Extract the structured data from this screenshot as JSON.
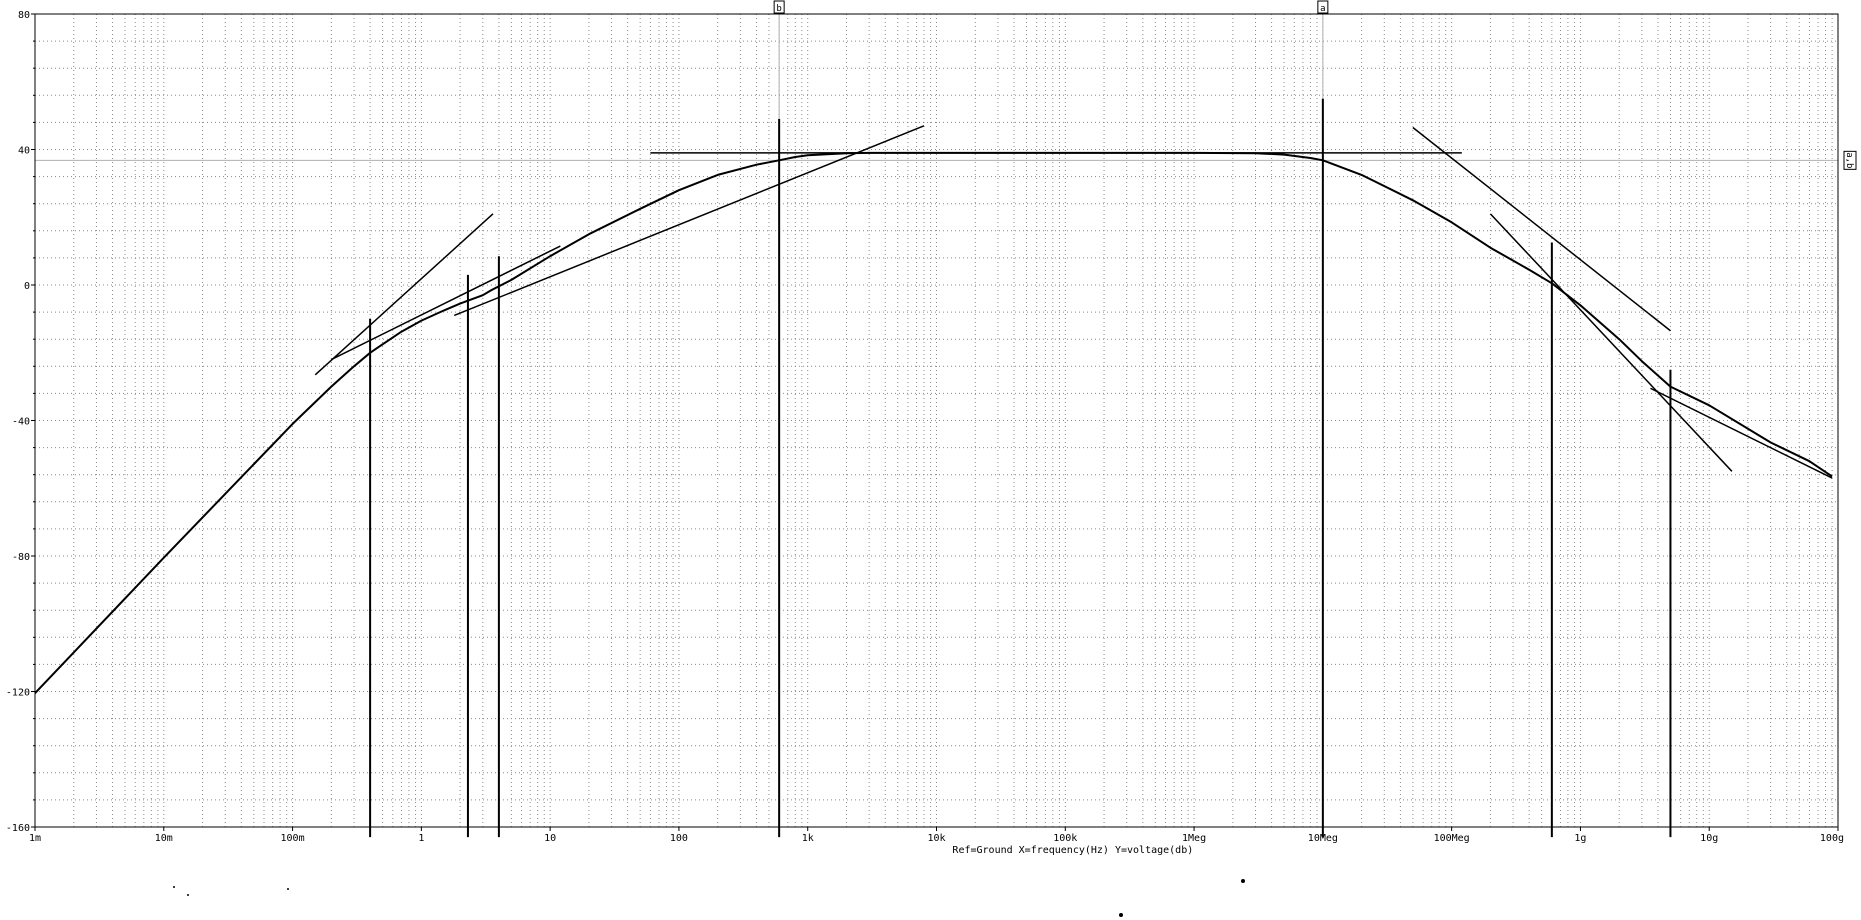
{
  "chart_data": {
    "type": "line",
    "x_scale": "log",
    "xlim": [
      0.001,
      100000000000
    ],
    "ylim": [
      -160,
      80
    ],
    "yticks": [
      80,
      40,
      0,
      -40,
      -80,
      -120,
      -160
    ],
    "xticks": [
      {
        "value": 0.001,
        "label": "1m"
      },
      {
        "value": 0.01,
        "label": "10m"
      },
      {
        "value": 0.1,
        "label": "100m"
      },
      {
        "value": 1,
        "label": "1"
      },
      {
        "value": 10,
        "label": "10"
      },
      {
        "value": 100,
        "label": "100"
      },
      {
        "value": 1000,
        "label": "1k"
      },
      {
        "value": 10000,
        "label": "10k"
      },
      {
        "value": 100000,
        "label": "100k"
      },
      {
        "value": 1000000,
        "label": "1Meg"
      },
      {
        "value": 10000000,
        "label": "10Meg"
      },
      {
        "value": 100000000,
        "label": "100Meg"
      },
      {
        "value": 1000000000,
        "label": "1g"
      },
      {
        "value": 10000000000,
        "label": "10g"
      },
      {
        "value": 100000000000,
        "label": "100g"
      }
    ],
    "grid": true,
    "footer": "Ref=Ground  X=frequency(Hz) Y=voltage(db)",
    "cursors": [
      {
        "label": "b",
        "x": 600
      },
      {
        "label": "a",
        "x": 10000000
      }
    ],
    "reference_line": {
      "label": "a,b",
      "y": 36.8
    },
    "series": [
      {
        "x": [
          0.001,
          0.01,
          0.1,
          0.2,
          0.3,
          0.4,
          0.5,
          0.7,
          1,
          1.5,
          2,
          3,
          3.5,
          5,
          10,
          20,
          50,
          100,
          200,
          400,
          600,
          800,
          1000,
          2000,
          3000,
          10000,
          100000,
          1000000,
          3000000,
          5000000,
          8000000,
          10000000,
          20000000,
          50000000,
          100000000,
          200000000,
          400000000,
          600000000,
          1000000000,
          2000000000,
          3000000000,
          5000000000,
          10000000000,
          30000000000,
          60000000000,
          90000000000
        ],
        "y": [
          -120.5,
          -80.5,
          -41,
          -30,
          -24,
          -20,
          -17.5,
          -13.8,
          -10.5,
          -7.5,
          -5.5,
          -3,
          -1.5,
          1.5,
          8.5,
          15,
          22.5,
          28,
          32.5,
          35.5,
          36.8,
          37.8,
          38.3,
          38.9,
          39,
          39,
          39,
          39,
          38.9,
          38.5,
          37.5,
          36.8,
          32.5,
          25,
          18.5,
          11,
          4.5,
          0.5,
          -6,
          -16,
          -22.5,
          -30,
          -35.5,
          -46.5,
          -52,
          -56.5
        ]
      }
    ],
    "asymptotes": [
      {
        "x": [
          0.15,
          3.6
        ],
        "y": [
          -26.5,
          21
        ]
      },
      {
        "x": [
          0.2,
          12
        ],
        "y": [
          -22,
          11.5
        ]
      },
      {
        "x": [
          1.8,
          8000
        ],
        "y": [
          -9,
          47
        ]
      },
      {
        "x": [
          60,
          120000000
        ],
        "y": [
          39,
          39
        ]
      },
      {
        "x": [
          50000000,
          5000000000
        ],
        "y": [
          46.5,
          -13.5
        ]
      },
      {
        "x": [
          200000000,
          15000000000
        ],
        "y": [
          21,
          -55
        ]
      },
      {
        "x": [
          3500000000,
          90000000000
        ],
        "y": [
          -30.5,
          -57
        ]
      }
    ],
    "markers": [
      {
        "x": 0.4,
        "y": [
          -10,
          -163
        ]
      },
      {
        "x": 2.3,
        "y": [
          3,
          -163
        ]
      },
      {
        "x": 4,
        "y": [
          8.5,
          -163
        ]
      },
      {
        "x": 600,
        "y": [
          49,
          -163
        ]
      },
      {
        "x": 10000000,
        "y": [
          55,
          -163
        ]
      },
      {
        "x": 600000000,
        "y": [
          12.5,
          -163
        ]
      },
      {
        "x": 5000000000,
        "y": [
          -25,
          -163
        ]
      }
    ]
  }
}
